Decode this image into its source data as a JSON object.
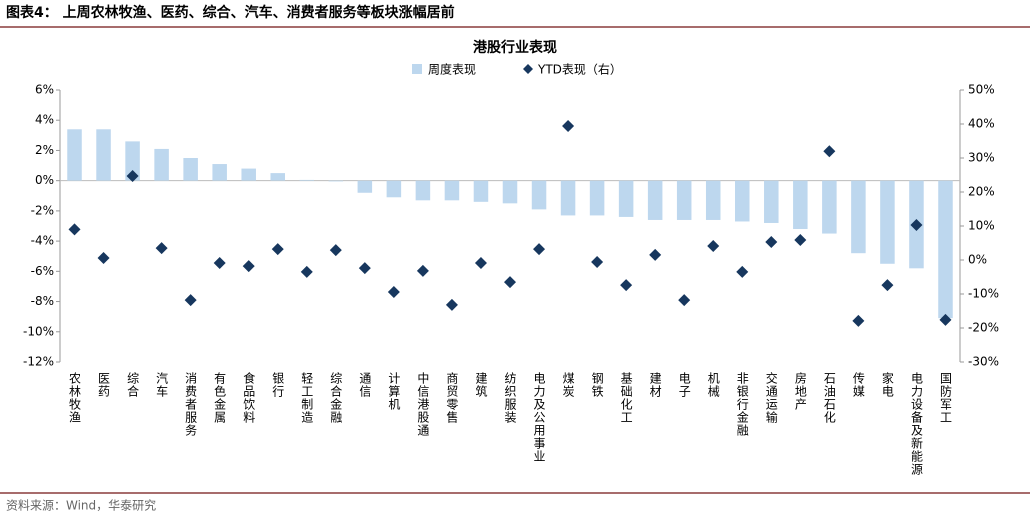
{
  "header": {
    "title": "图表4：  上周农林牧渔、医药、综合、汽车、消费者服务等板块涨幅居前"
  },
  "source": "资料来源：Wind，华泰研究",
  "chart_data": {
    "type": "bar",
    "title": "港股行业表现",
    "categories": [
      "农林牧渔",
      "医药",
      "综合",
      "汽车",
      "消费者服务",
      "有色金属",
      "食品饮料",
      "银行",
      "轻工制造",
      "综合金融",
      "通信",
      "计算机",
      "中信港股通",
      "商贸零售",
      "建筑",
      "纺织服装",
      "电力及公用事业",
      "煤炭",
      "钢铁",
      "基础化工",
      "建材",
      "电子",
      "机械",
      "非银行金融",
      "交通运输",
      "房地产",
      "石油石化",
      "传媒",
      "家电",
      "电力设备及新能源",
      "国防军工"
    ],
    "series": [
      {
        "name": "周度表现",
        "color": "#bdd7ee",
        "values": [
          3.4,
          3.4,
          2.6,
          2.1,
          1.5,
          1.1,
          0.8,
          0.5,
          0.05,
          -0.05,
          -0.8,
          -1.1,
          -1.3,
          -1.3,
          -1.4,
          -1.5,
          -1.9,
          -2.3,
          -2.3,
          -2.4,
          -2.6,
          -2.6,
          -2.6,
          -2.7,
          -2.8,
          -3.2,
          -3.5,
          -4.8,
          -5.5,
          -5.8,
          -9.1
        ]
      },
      {
        "name": "YTD表现（右）",
        "color": "#17375e",
        "axis": "y2",
        "values": [
          9,
          0.6,
          24.7,
          3.5,
          -11.8,
          -0.9,
          -1.8,
          3.2,
          -3.5,
          2.9,
          -2.4,
          -9.4,
          -3.2,
          -13.2,
          -0.9,
          -6.5,
          3.2,
          39.4,
          -0.6,
          -7.4,
          1.5,
          -11.8,
          4.1,
          -3.5,
          5.3,
          5.9,
          32,
          -17.9,
          -7.4,
          10.3,
          -17.6
        ]
      }
    ],
    "ylim": [
      -12,
      6
    ],
    "yticks": [
      {
        "value": 6,
        "label": "6%"
      },
      {
        "value": 4,
        "label": "4%"
      },
      {
        "value": 2,
        "label": "2%"
      },
      {
        "value": 0,
        "label": "0%"
      },
      {
        "value": -2,
        "label": "-2%"
      },
      {
        "value": -4,
        "label": "-4%"
      },
      {
        "value": -6,
        "label": "-6%"
      },
      {
        "value": -8,
        "label": "-8%"
      },
      {
        "value": -10,
        "label": "-10%"
      },
      {
        "value": -12,
        "label": "-12%"
      }
    ],
    "y2lim": [
      -30,
      50
    ],
    "y2ticks": [
      {
        "value": 50,
        "label": "50%"
      },
      {
        "value": 40,
        "label": "40%"
      },
      {
        "value": 30,
        "label": "30%"
      },
      {
        "value": 20,
        "label": "20%"
      },
      {
        "value": 10,
        "label": "10%"
      },
      {
        "value": 0,
        "label": "0%"
      },
      {
        "value": -10,
        "label": "-10%"
      },
      {
        "value": -20,
        "label": "-20%"
      },
      {
        "value": -30,
        "label": "-30%"
      }
    ]
  }
}
